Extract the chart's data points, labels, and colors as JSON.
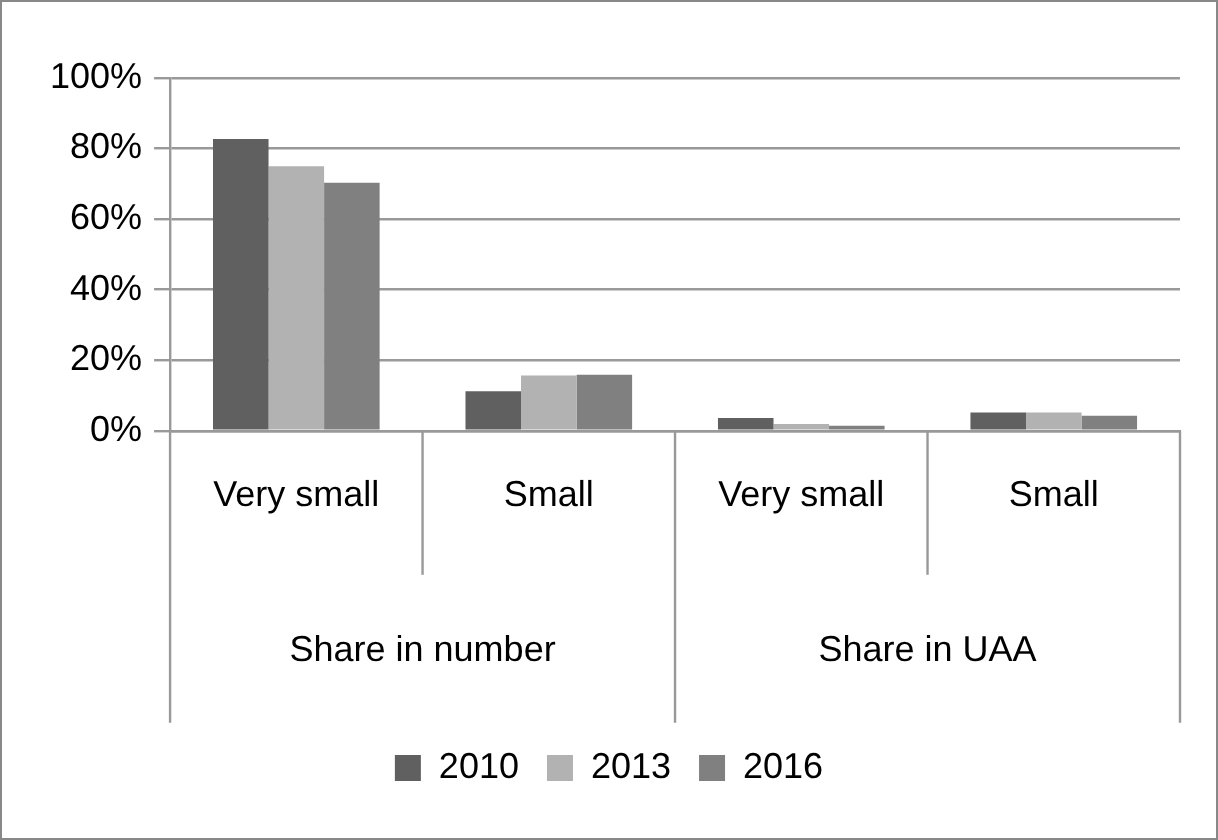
{
  "chart_data": {
    "type": "bar",
    "categories": [
      "Very small",
      "Small",
      "Very small",
      "Small"
    ],
    "annotations": [
      "Share in number",
      "Share in UAA"
    ],
    "series": [
      {
        "name": "2010",
        "color": "#606060",
        "values": [
          82.7,
          11.2,
          3.6,
          5.2
        ]
      },
      {
        "name": "2013",
        "color": "#b2b2b2",
        "values": [
          75,
          15.7,
          1.9,
          5.2
        ]
      },
      {
        "name": "2016",
        "color": "#808080",
        "values": [
          70.3,
          15.9,
          1.4,
          4.3
        ]
      }
    ],
    "ylim": [
      0,
      100
    ],
    "yticks": [
      {
        "value": 0,
        "label": "0%"
      },
      {
        "value": 20,
        "label": "20%"
      },
      {
        "value": 40,
        "label": "40%"
      },
      {
        "value": 60,
        "label": "60%"
      },
      {
        "value": 80,
        "label": "80%"
      },
      {
        "value": 100,
        "label": "100%"
      }
    ],
    "grid": "y",
    "legend": "bottom"
  }
}
